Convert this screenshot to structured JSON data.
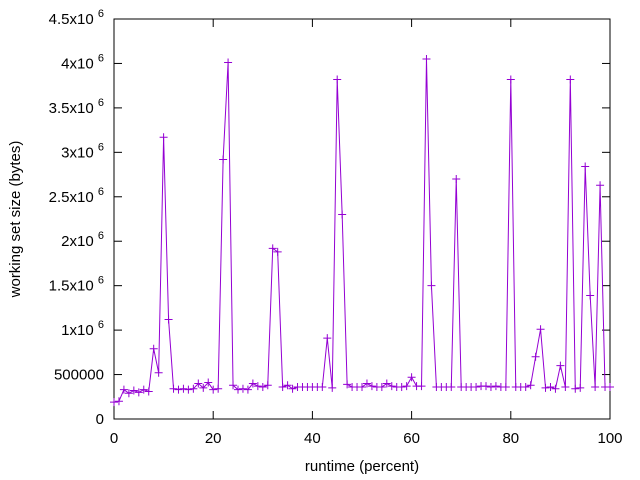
{
  "chart_data": {
    "type": "line",
    "title": "",
    "xlabel": "runtime (percent)",
    "ylabel": "working set size (bytes)",
    "xlim": [
      0,
      100
    ],
    "ylim": [
      0,
      4500000
    ],
    "grid": false,
    "legend": "none",
    "marker": "plus",
    "series_color": "#9400d3",
    "x_ticks": [
      {
        "value": 0,
        "label": "0"
      },
      {
        "value": 20,
        "label": "20"
      },
      {
        "value": 40,
        "label": "40"
      },
      {
        "value": 60,
        "label": "60"
      },
      {
        "value": 80,
        "label": "80"
      },
      {
        "value": 100,
        "label": "100"
      }
    ],
    "y_ticks": [
      {
        "value": 0,
        "base": "0",
        "exp": ""
      },
      {
        "value": 500000,
        "base": "500000",
        "exp": ""
      },
      {
        "value": 1000000,
        "base": "1x10",
        "exp": "6"
      },
      {
        "value": 1500000,
        "base": "1.5x10",
        "exp": "6"
      },
      {
        "value": 2000000,
        "base": "2x10",
        "exp": "6"
      },
      {
        "value": 2500000,
        "base": "2.5x10",
        "exp": "6"
      },
      {
        "value": 3000000,
        "base": "3x10",
        "exp": "6"
      },
      {
        "value": 3500000,
        "base": "3.5x10",
        "exp": "6"
      },
      {
        "value": 4000000,
        "base": "4x10",
        "exp": "6"
      },
      {
        "value": 4500000,
        "base": "4.5x10",
        "exp": "6"
      }
    ],
    "series": [
      {
        "points": [
          [
            0,
            190000
          ],
          [
            1,
            200000
          ],
          [
            2,
            330000
          ],
          [
            3,
            290000
          ],
          [
            4,
            320000
          ],
          [
            5,
            300000
          ],
          [
            6,
            330000
          ],
          [
            7,
            310000
          ],
          [
            8,
            790000
          ],
          [
            9,
            520000
          ],
          [
            10,
            3170000
          ],
          [
            11,
            1120000
          ],
          [
            12,
            340000
          ],
          [
            13,
            330000
          ],
          [
            14,
            340000
          ],
          [
            15,
            330000
          ],
          [
            16,
            340000
          ],
          [
            17,
            400000
          ],
          [
            18,
            350000
          ],
          [
            19,
            410000
          ],
          [
            20,
            330000
          ],
          [
            21,
            340000
          ],
          [
            22,
            2920000
          ],
          [
            23,
            4010000
          ],
          [
            24,
            380000
          ],
          [
            25,
            330000
          ],
          [
            26,
            340000
          ],
          [
            27,
            330000
          ],
          [
            28,
            400000
          ],
          [
            29,
            370000
          ],
          [
            30,
            360000
          ],
          [
            31,
            380000
          ],
          [
            32,
            1920000
          ],
          [
            33,
            1880000
          ],
          [
            34,
            360000
          ],
          [
            35,
            380000
          ],
          [
            36,
            340000
          ],
          [
            37,
            360000
          ],
          [
            38,
            360000
          ],
          [
            39,
            360000
          ],
          [
            40,
            360000
          ],
          [
            41,
            360000
          ],
          [
            42,
            360000
          ],
          [
            43,
            910000
          ],
          [
            44,
            350000
          ],
          [
            45,
            3820000
          ],
          [
            46,
            2300000
          ],
          [
            47,
            390000
          ],
          [
            48,
            360000
          ],
          [
            49,
            360000
          ],
          [
            50,
            360000
          ],
          [
            51,
            400000
          ],
          [
            52,
            370000
          ],
          [
            53,
            360000
          ],
          [
            54,
            360000
          ],
          [
            55,
            400000
          ],
          [
            56,
            370000
          ],
          [
            57,
            360000
          ],
          [
            58,
            360000
          ],
          [
            59,
            370000
          ],
          [
            60,
            470000
          ],
          [
            61,
            370000
          ],
          [
            62,
            370000
          ],
          [
            63,
            4050000
          ],
          [
            64,
            1500000
          ],
          [
            65,
            360000
          ],
          [
            66,
            360000
          ],
          [
            67,
            360000
          ],
          [
            68,
            360000
          ],
          [
            69,
            2700000
          ],
          [
            70,
            360000
          ],
          [
            71,
            360000
          ],
          [
            72,
            360000
          ],
          [
            73,
            360000
          ],
          [
            74,
            370000
          ],
          [
            75,
            370000
          ],
          [
            76,
            360000
          ],
          [
            77,
            370000
          ],
          [
            78,
            360000
          ],
          [
            79,
            360000
          ],
          [
            80,
            3820000
          ],
          [
            81,
            360000
          ],
          [
            82,
            360000
          ],
          [
            83,
            360000
          ],
          [
            84,
            380000
          ],
          [
            85,
            700000
          ],
          [
            86,
            1010000
          ],
          [
            87,
            350000
          ],
          [
            88,
            360000
          ],
          [
            89,
            340000
          ],
          [
            90,
            600000
          ],
          [
            91,
            360000
          ],
          [
            92,
            3820000
          ],
          [
            93,
            340000
          ],
          [
            94,
            350000
          ],
          [
            95,
            2840000
          ],
          [
            96,
            1390000
          ],
          [
            97,
            360000
          ],
          [
            98,
            2630000
          ],
          [
            99,
            360000
          ],
          [
            100,
            360000
          ]
        ]
      }
    ]
  }
}
